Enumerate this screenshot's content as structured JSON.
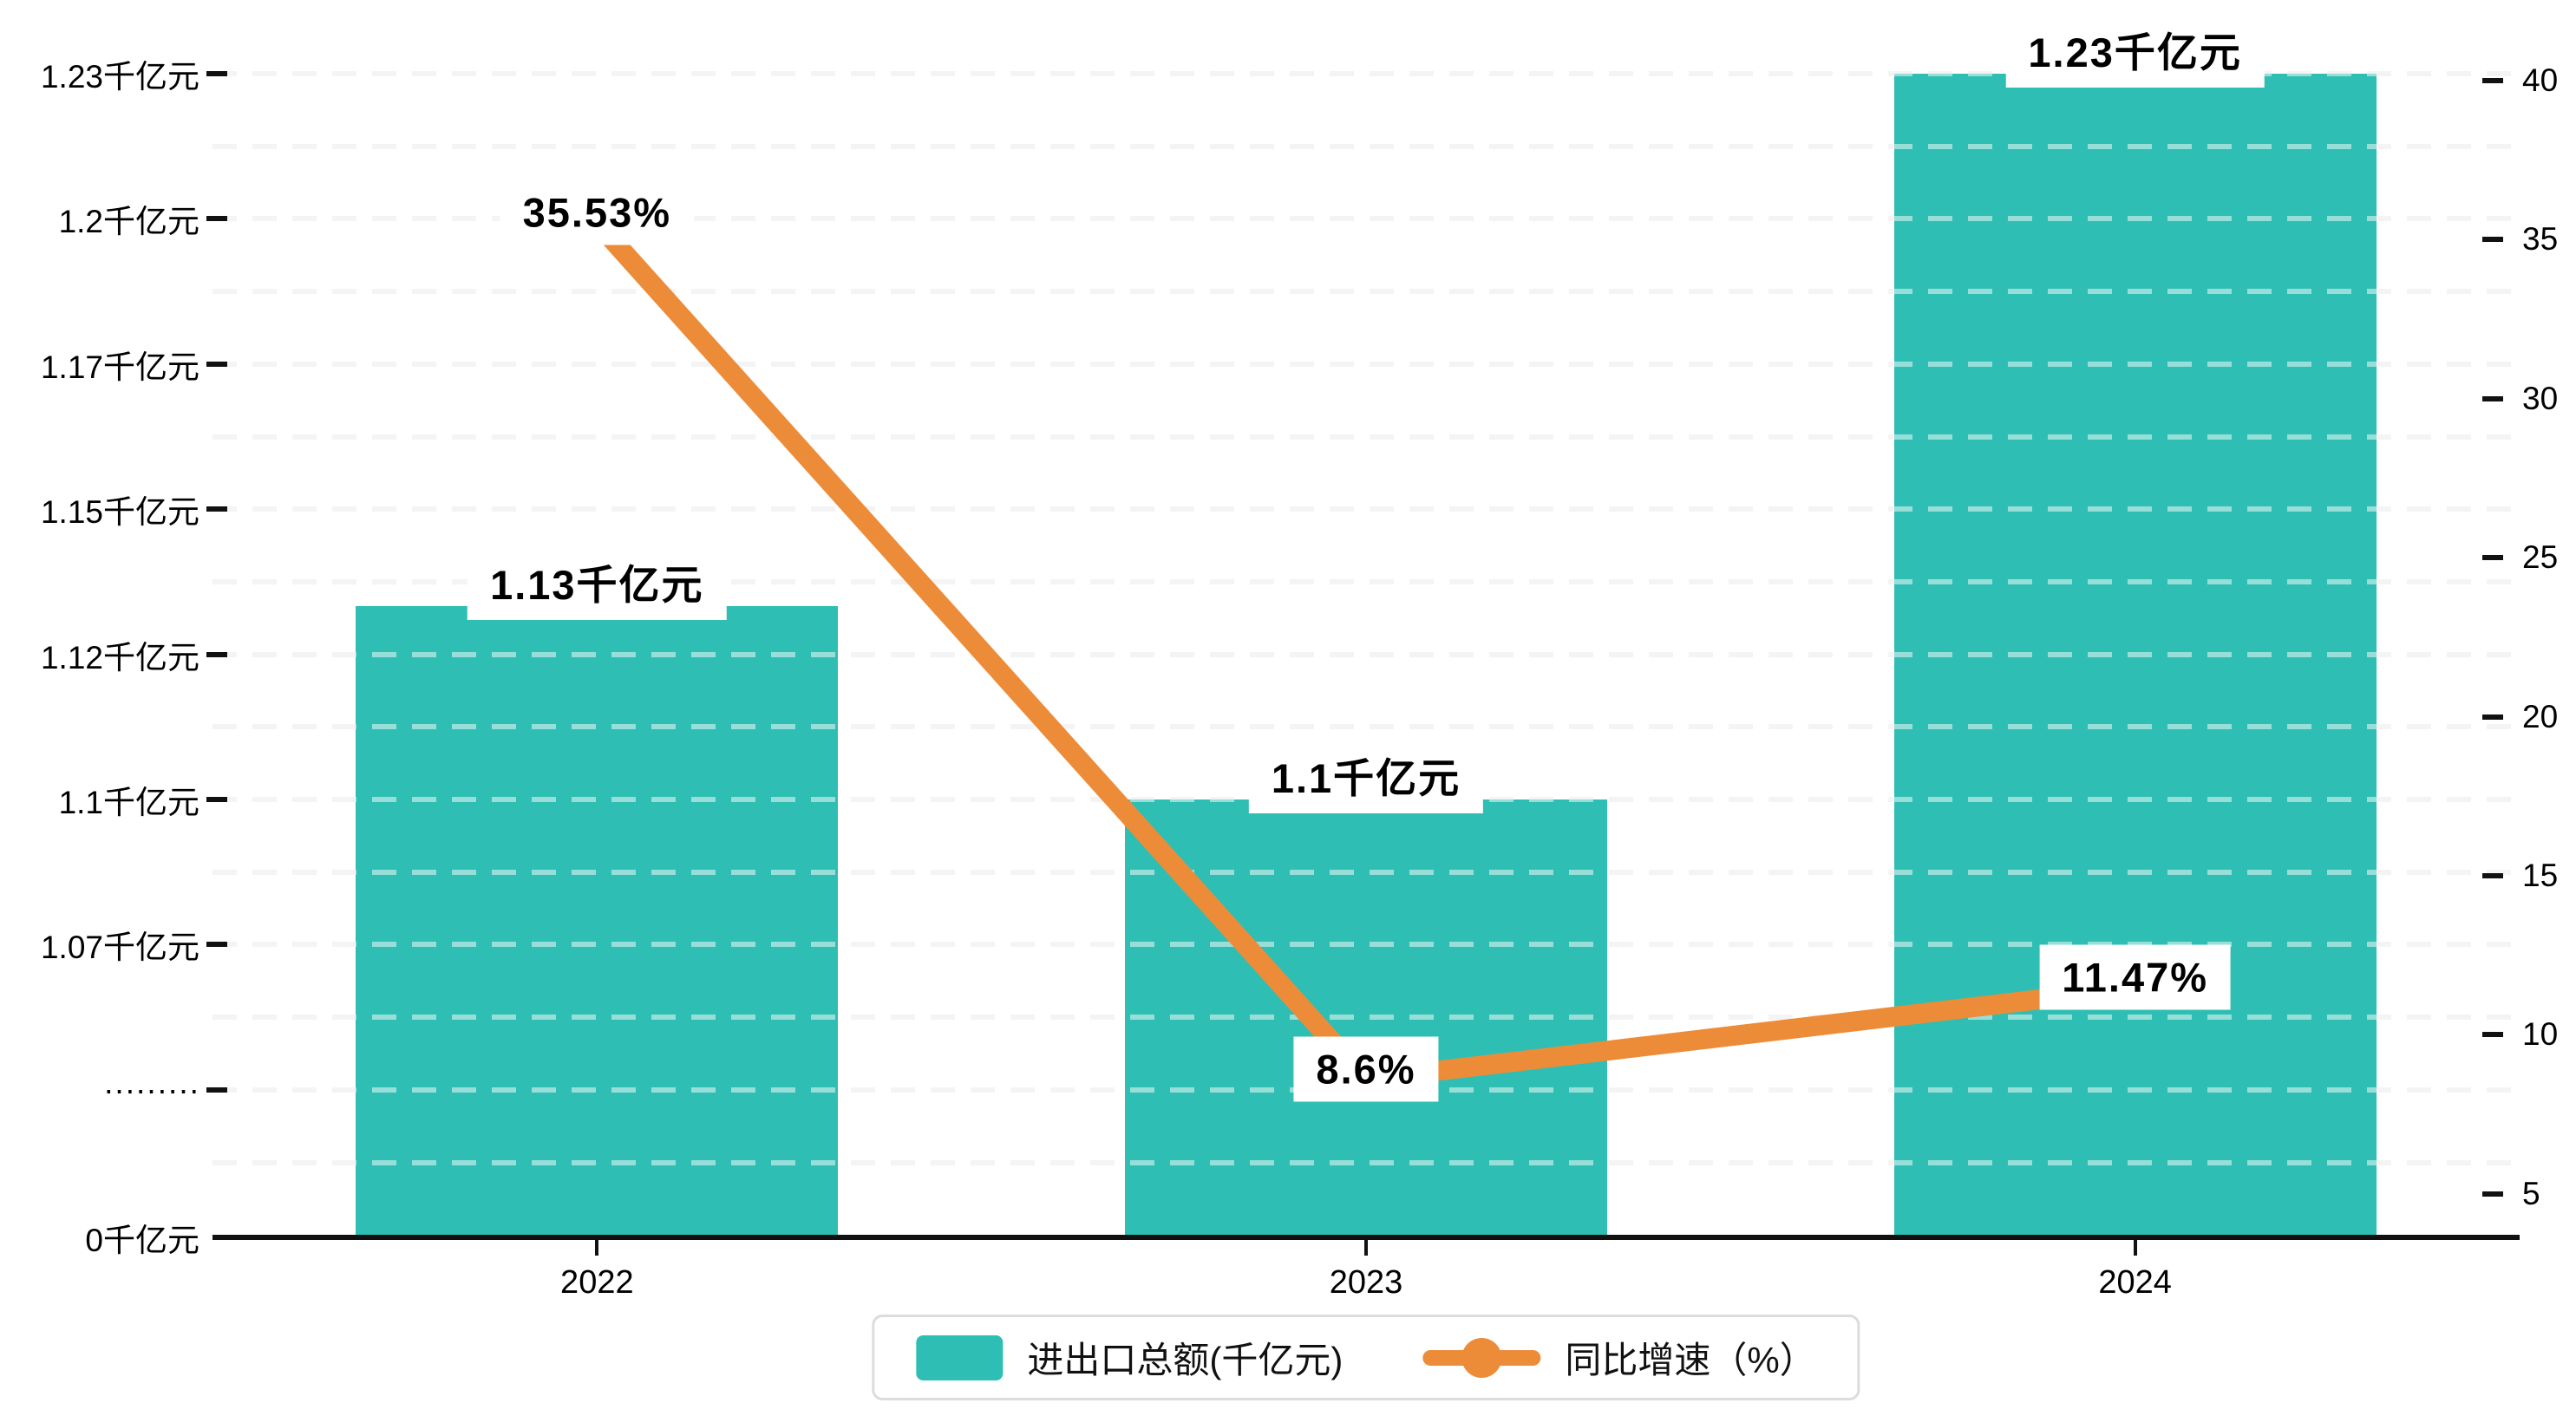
{
  "chart_data": {
    "type": "bar+line",
    "categories": [
      "2022",
      "2023",
      "2024"
    ],
    "series": [
      {
        "name": "进出口总额(千亿元)",
        "type": "bar",
        "values": [
          1.13,
          1.1,
          1.23
        ],
        "labels": [
          "1.13千亿元",
          "1.1千亿元",
          "1.23千亿元"
        ],
        "color": "#2FBEB3"
      },
      {
        "name": "同比增速（%）",
        "type": "line",
        "values": [
          35.53,
          8.6,
          11.47
        ],
        "labels": [
          "35.53%",
          "8.6%",
          "11.47%"
        ],
        "color": "#ED8C38"
      }
    ],
    "left_axis": {
      "unit": "千亿元",
      "tick_labels": [
        "1.23千亿元",
        "1.2千亿元",
        "1.17千亿元",
        "1.15千亿元",
        "1.12千亿元",
        "1.1千亿元",
        "1.07千亿元",
        "·········"
      ],
      "tick_values": [
        1.23,
        1.2,
        1.17,
        1.15,
        1.12,
        1.1,
        1.07,
        null
      ],
      "baseline_label": "0千亿元",
      "broken_axis": true
    },
    "right_axis": {
      "tick_labels": [
        "40",
        "35",
        "30",
        "25",
        "20",
        "15",
        "10",
        "5"
      ],
      "tick_values": [
        40,
        35,
        30,
        25,
        20,
        15,
        10,
        5
      ]
    },
    "legend": [
      {
        "label": "进出口总额(千亿元)",
        "marker": "bar"
      },
      {
        "label": "同比增速（%）",
        "marker": "line"
      }
    ],
    "grid": true,
    "colors": {
      "bar": "#2FBEB3",
      "line": "#ED8C38",
      "axis": "#111111",
      "gridline": "#e9e9e9",
      "label_bg": "#ffffff",
      "text": "#000000"
    }
  }
}
